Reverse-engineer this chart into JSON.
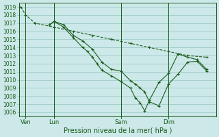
{
  "xlabel": "Pression niveau de la mer( hPa )",
  "ylim": [
    1005.5,
    1019.5
  ],
  "yticks": [
    1006,
    1007,
    1008,
    1009,
    1010,
    1011,
    1012,
    1013,
    1014,
    1015,
    1016,
    1017,
    1018,
    1019
  ],
  "background_color": "#cce8e8",
  "grid_color": "#99c4c4",
  "line_color": "#1a5c1a",
  "xtick_labels": [
    "Ven",
    "Lun",
    "Sam",
    "Dim"
  ],
  "xtick_positions": [
    0.5,
    3.5,
    10.5,
    15.5
  ],
  "vline_positions": [
    0.5,
    3.5,
    10.5,
    15.5
  ],
  "xlim": [
    -0.2,
    20.5
  ],
  "series1_x": [
    0,
    0.5,
    1.5,
    3.5,
    5.5,
    7.5,
    9.5,
    11.5,
    13.5,
    15.5,
    17.5,
    19.5
  ],
  "series1_y": [
    1019.0,
    1018.0,
    1017.0,
    1016.5,
    1016.0,
    1015.5,
    1015.0,
    1014.5,
    1014.0,
    1013.5,
    1013.0,
    1012.8
  ],
  "series2_x": [
    3.0,
    3.5,
    4.5,
    5.5,
    6.5,
    7.5,
    8.5,
    9.5,
    10.5,
    11.5,
    12.0,
    12.5,
    13.0,
    13.5,
    14.5,
    15.5,
    16.5,
    17.5,
    18.5,
    19.5
  ],
  "series2_y": [
    1016.8,
    1017.2,
    1016.8,
    1015.5,
    1014.8,
    1013.8,
    1012.2,
    1011.3,
    1011.1,
    1009.9,
    1009.5,
    1009.0,
    1008.5,
    1007.3,
    1006.8,
    1009.5,
    1010.7,
    1012.2,
    1012.3,
    1011.1
  ],
  "series3_x": [
    3.0,
    3.5,
    4.5,
    5.5,
    6.5,
    7.0,
    7.5,
    8.0,
    8.5,
    9.5,
    10.5,
    11.5,
    12.0,
    12.5,
    13.0,
    13.5,
    14.5,
    15.5,
    16.5,
    17.5,
    18.5,
    19.5
  ],
  "series3_y": [
    1016.8,
    1017.2,
    1016.5,
    1015.2,
    1014.0,
    1013.5,
    1012.8,
    1012.0,
    1011.2,
    1010.5,
    1009.8,
    1009.0,
    1007.8,
    1007.2,
    1006.2,
    1007.5,
    1009.7,
    1010.8,
    1013.2,
    1012.8,
    1012.5,
    1011.3
  ]
}
